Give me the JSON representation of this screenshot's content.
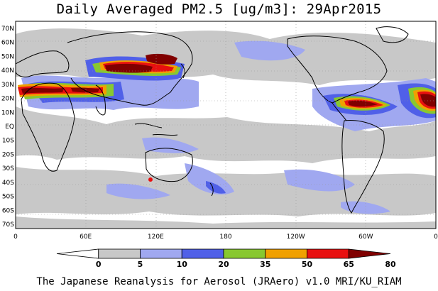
{
  "title": "Daily Averaged PM2.5 [ug/m3]: 29Apr2015",
  "footer": "The Japanese Reanalysis for Aerosol (JRAero) v1.0 MRI/KU_RIAM",
  "lat_labels": [
    "70N",
    "60N",
    "50N",
    "40N",
    "30N",
    "20N",
    "10N",
    "EQ",
    "10S",
    "20S",
    "30S",
    "40S",
    "50S",
    "60S",
    "70S"
  ],
  "lon_labels": [
    "0",
    "60E",
    "120E",
    "180",
    "120W",
    "60W",
    "0"
  ],
  "colorbar": {
    "ticks": [
      "0",
      "5",
      "10",
      "20",
      "35",
      "50",
      "65",
      "80"
    ],
    "colors": [
      "#ffffff",
      "#c8c8c8",
      "#a0a8f0",
      "#5060e8",
      "#88c830",
      "#f0a000",
      "#e81010",
      "#800000"
    ]
  }
}
